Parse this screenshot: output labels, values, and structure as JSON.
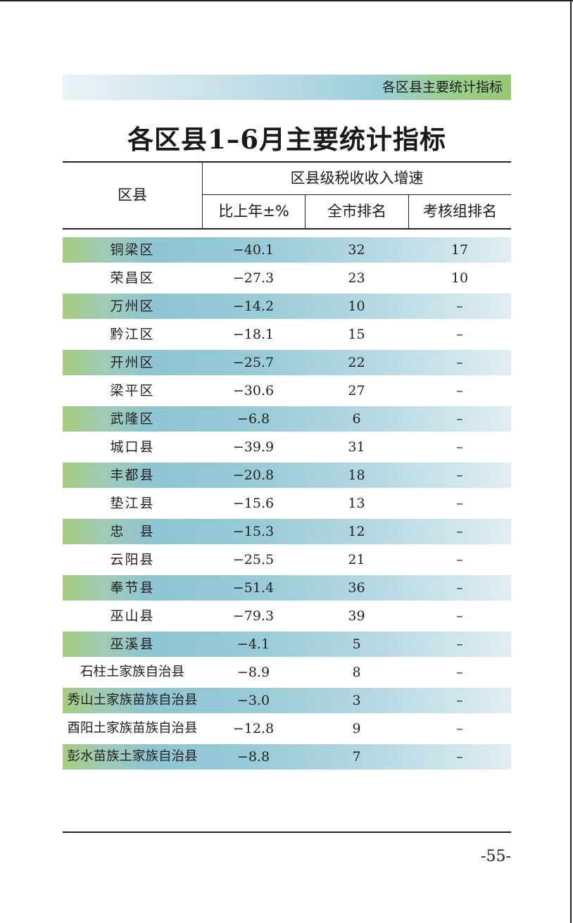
{
  "running_header": "各区县主要统计指标",
  "title": "各区县1–6月主要统计指标",
  "table": {
    "col_district": "区县",
    "group_header": "区县级税收收入增速",
    "col_change": "比上年±%",
    "col_city_rank": "全市排名",
    "col_group_rank": "考核组排名",
    "rows": [
      {
        "name": "铜梁区",
        "change": "−40.1",
        "city_rank": "32",
        "group_rank": "17"
      },
      {
        "name": "荣昌区",
        "change": "−27.3",
        "city_rank": "23",
        "group_rank": "10"
      },
      {
        "name": "万州区",
        "change": "−14.2",
        "city_rank": "10",
        "group_rank": "–"
      },
      {
        "name": "黔江区",
        "change": "−18.1",
        "city_rank": "15",
        "group_rank": "–"
      },
      {
        "name": "开州区",
        "change": "−25.7",
        "city_rank": "22",
        "group_rank": "–"
      },
      {
        "name": "梁平区",
        "change": "−30.6",
        "city_rank": "27",
        "group_rank": "–"
      },
      {
        "name": "武隆区",
        "change": "−6.8",
        "city_rank": "6",
        "group_rank": "–"
      },
      {
        "name": "城口县",
        "change": "−39.9",
        "city_rank": "31",
        "group_rank": "–"
      },
      {
        "name": "丰都县",
        "change": "−20.8",
        "city_rank": "18",
        "group_rank": "–"
      },
      {
        "name": "垫江县",
        "change": "−15.6",
        "city_rank": "13",
        "group_rank": "–"
      },
      {
        "name": "忠　县",
        "change": "−15.3",
        "city_rank": "12",
        "group_rank": "–"
      },
      {
        "name": "云阳县",
        "change": "−25.5",
        "city_rank": "21",
        "group_rank": "–"
      },
      {
        "name": "奉节县",
        "change": "−51.4",
        "city_rank": "36",
        "group_rank": "–"
      },
      {
        "name": "巫山县",
        "change": "−79.3",
        "city_rank": "39",
        "group_rank": "–"
      },
      {
        "name": "巫溪县",
        "change": "−4.1",
        "city_rank": "5",
        "group_rank": "–"
      },
      {
        "name": "石柱土家族自治县",
        "change": "−8.9",
        "city_rank": "8",
        "group_rank": "–"
      },
      {
        "name": "秀山土家族苗族自治县",
        "change": "−3.0",
        "city_rank": "3",
        "group_rank": "–"
      },
      {
        "name": "酉阳土家族苗族自治县",
        "change": "−12.8",
        "city_rank": "9",
        "group_rank": "–"
      },
      {
        "name": "彭水苗族土家族自治县",
        "change": "−8.8",
        "city_rank": "7",
        "group_rank": "–"
      }
    ]
  },
  "page_number": "-55-"
}
